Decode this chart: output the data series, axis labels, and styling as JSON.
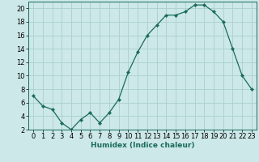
{
  "x": [
    0,
    1,
    2,
    3,
    4,
    5,
    6,
    7,
    8,
    9,
    10,
    11,
    12,
    13,
    14,
    15,
    16,
    17,
    18,
    19,
    20,
    21,
    22,
    23
  ],
  "y": [
    7,
    5.5,
    5,
    3,
    2,
    3.5,
    4.5,
    3,
    4.5,
    6.5,
    10.5,
    13.5,
    16,
    17.5,
    19,
    19,
    19.5,
    20.5,
    20.5,
    19.5,
    18,
    14,
    10,
    8
  ],
  "line_color": "#1a6b5a",
  "marker": "D",
  "marker_size": 2.2,
  "bg_color": "#cce8e8",
  "grid_color": "#aacece",
  "xlabel": "Humidex (Indice chaleur)",
  "xlim": [
    -0.5,
    23.5
  ],
  "ylim": [
    2,
    21
  ],
  "yticks": [
    2,
    4,
    6,
    8,
    10,
    12,
    14,
    16,
    18,
    20
  ],
  "xticks": [
    0,
    1,
    2,
    3,
    4,
    5,
    6,
    7,
    8,
    9,
    10,
    11,
    12,
    13,
    14,
    15,
    16,
    17,
    18,
    19,
    20,
    21,
    22,
    23
  ],
  "label_fontsize": 6.5,
  "tick_fontsize": 6.0
}
